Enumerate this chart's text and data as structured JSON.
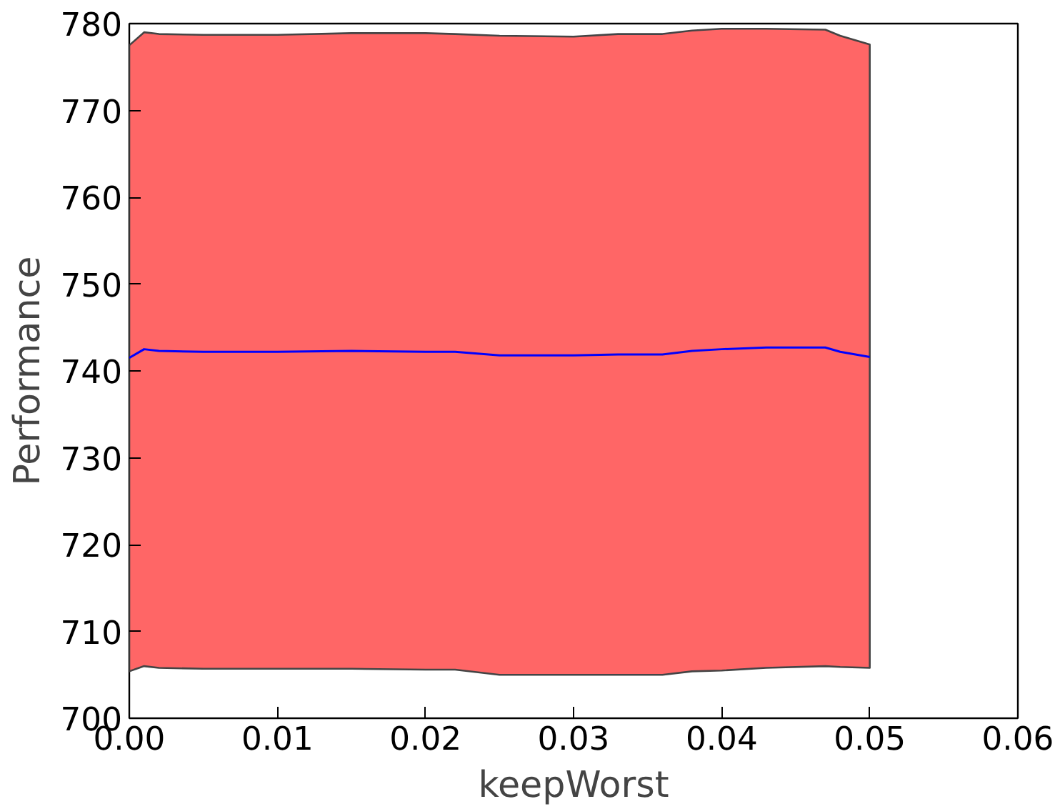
{
  "chart_data": {
    "type": "line",
    "xlabel": "keepWorst",
    "ylabel": "Performance",
    "xlim": [
      0,
      0.06
    ],
    "ylim": [
      700,
      780
    ],
    "xticks": [
      {
        "value": 0,
        "label": "0.00"
      },
      {
        "value": 0.01,
        "label": "0.01"
      },
      {
        "value": 0.02,
        "label": "0.02"
      },
      {
        "value": 0.03,
        "label": "0.03"
      },
      {
        "value": 0.04,
        "label": "0.04"
      },
      {
        "value": 0.05,
        "label": "0.05"
      },
      {
        "value": 0.06,
        "label": "0.06"
      }
    ],
    "yticks": [
      700,
      710,
      720,
      730,
      740,
      750,
      760,
      770,
      780
    ],
    "grid": false,
    "marker": "none",
    "line_style": "solid",
    "series": [
      {
        "color": "#0000ff",
        "x": [
          0,
          0.001,
          0.002,
          0.005,
          0.01,
          0.015,
          0.02,
          0.022,
          0.025,
          0.03,
          0.033,
          0.036,
          0.038,
          0.04,
          0.043,
          0.047,
          0.048,
          0.05
        ],
        "values": [
          741.5,
          742.5,
          742.3,
          742.2,
          742.2,
          742.3,
          742.2,
          742.2,
          741.8,
          741.8,
          741.9,
          741.9,
          742.3,
          742.5,
          742.7,
          742.7,
          742.2,
          741.6
        ],
        "lower": [
          705.4,
          706.0,
          705.8,
          705.7,
          705.7,
          705.7,
          705.6,
          705.6,
          705.0,
          705.0,
          705.0,
          705.0,
          705.4,
          705.5,
          705.8,
          706.0,
          705.9,
          705.8
        ],
        "upper": [
          777.5,
          779.0,
          778.8,
          778.7,
          778.7,
          778.9,
          778.9,
          778.8,
          778.6,
          778.5,
          778.8,
          778.8,
          779.2,
          779.4,
          779.4,
          779.3,
          778.6,
          777.6
        ]
      }
    ]
  }
}
